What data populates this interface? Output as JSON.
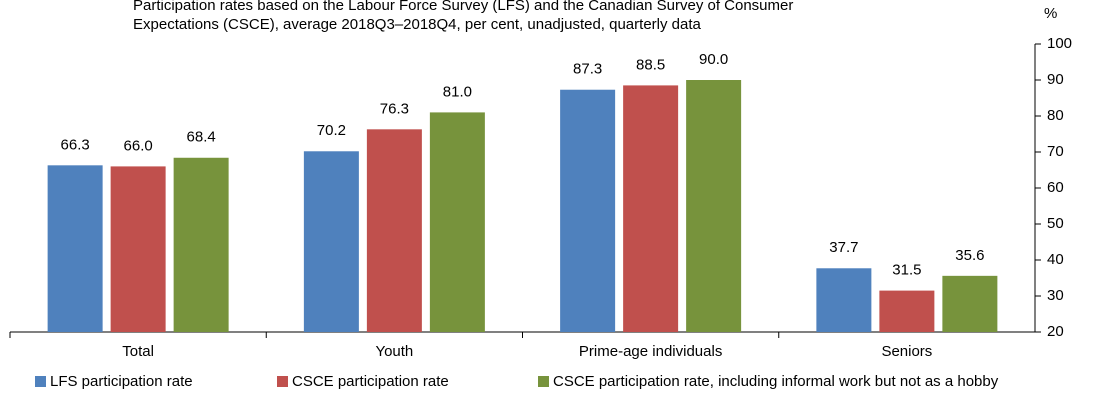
{
  "chart_data": {
    "type": "bar",
    "title_lines": [
      "Participation rates based on the Labour Force Survey (LFS) and the Canadian Survey of Consumer",
      "Expectations (CSCE), average 2018Q3–2018Q4, per cent, unadjusted, quarterly data"
    ],
    "ylabel": "%",
    "categories": [
      "Total",
      "Youth",
      "Prime-age individuals",
      "Seniors"
    ],
    "series": [
      {
        "name": "LFS participation rate",
        "color": "#4f81bd",
        "values": [
          66.3,
          70.2,
          87.3,
          37.7
        ],
        "value_labels": [
          "66.3",
          "70.2",
          "87.3",
          "37.7"
        ]
      },
      {
        "name": "CSCE participation rate",
        "color": "#c0504d",
        "values": [
          66.0,
          76.3,
          88.5,
          31.5
        ],
        "value_labels": [
          "66.0",
          "76.3",
          "88.5",
          "31.5"
        ]
      },
      {
        "name": "CSCE participation rate, including informal work but not as a hobby",
        "color": "#77933c",
        "values": [
          68.4,
          81.0,
          90.0,
          35.6
        ],
        "value_labels": [
          "68.4",
          "81.0",
          "90.0",
          "35.6"
        ]
      }
    ],
    "ylim": [
      20,
      100
    ],
    "yticks": [
      20,
      30,
      40,
      50,
      60,
      70,
      80,
      90,
      100
    ],
    "y_axis_side": "right"
  }
}
